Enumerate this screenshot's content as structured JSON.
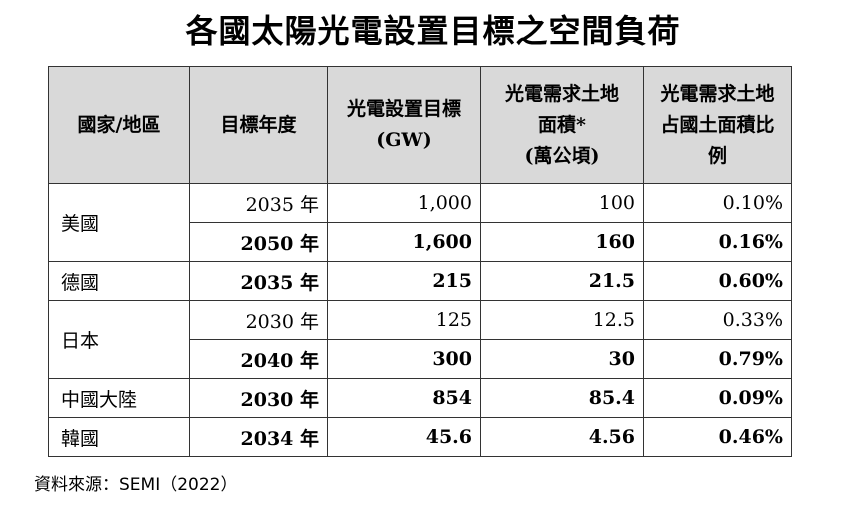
{
  "title": "各國太陽光電設置目標之空間負荷",
  "table": {
    "headers": [
      "國家/地區",
      "目標年度",
      "光電設置目標\n(GW)",
      "光電需求土地\n面積*\n(萬公頃)",
      "光電需求土地\n占國土面積比\n例"
    ],
    "rows": [
      {
        "country": "美國",
        "span": 2,
        "year": "2035 年",
        "target": "1,000",
        "area": "100",
        "ratio": "0.10%",
        "bold": false
      },
      {
        "year": "2050 年",
        "target": "1,600",
        "area": "160",
        "ratio": "0.16%",
        "bold": true
      },
      {
        "country": "德國",
        "span": 1,
        "year": "2035 年",
        "target": "215",
        "area": "21.5",
        "ratio": "0.60%",
        "bold": true
      },
      {
        "country": "日本",
        "span": 2,
        "year": "2030 年",
        "target": "125",
        "area": "12.5",
        "ratio": "0.33%",
        "bold": false
      },
      {
        "year": "2040 年",
        "target": "300",
        "area": "30",
        "ratio": "0.79%",
        "bold": true
      },
      {
        "country": "中國大陸",
        "span": 1,
        "year": "2030 年",
        "target": "854",
        "area": "85.4",
        "ratio": "0.09%",
        "bold": true
      },
      {
        "country": "韓國",
        "span": 1,
        "year": "2034 年",
        "target": "45.6",
        "area": "4.56",
        "ratio": "0.46%",
        "bold": true
      }
    ]
  },
  "source": "資料來源：SEMI（2022）"
}
